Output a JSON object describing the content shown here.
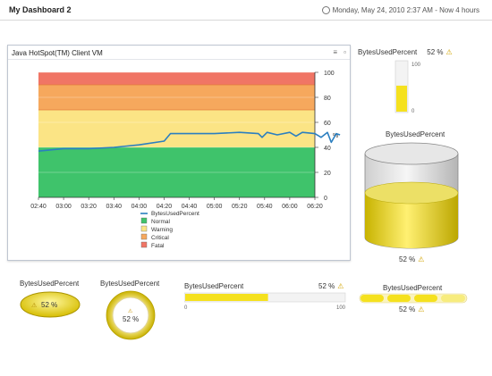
{
  "header": {
    "title": "My Dashboard 2",
    "time_range": "Monday, May 24, 2010 2:37 AM - Now 4 hours"
  },
  "colors": {
    "fatal": "#f07565",
    "critical": "#f6a85d",
    "warning": "#fbe485",
    "normal": "#3fc36b",
    "series": "#2b7fc0",
    "gauge_fill": "#f5e11e"
  },
  "line_panel": {
    "title": "Java HotSpot(TM) Client VM",
    "menu_icon": "menu-icon",
    "close_icon": "close-icon"
  },
  "chart_data": {
    "type": "line",
    "x": [
      "02:40",
      "03:00",
      "03:20",
      "03:40",
      "04:00",
      "04:20",
      "04:40",
      "05:00",
      "05:20",
      "05:40",
      "06:00",
      "06:20"
    ],
    "y_ticks": [
      0,
      20,
      40,
      60,
      80,
      100
    ],
    "ylim": [
      0,
      100
    ],
    "ylabel": "%",
    "bands": [
      {
        "name": "Normal",
        "from": 0,
        "to": 40
      },
      {
        "name": "Warning",
        "from": 40,
        "to": 70
      },
      {
        "name": "Critical",
        "from": 70,
        "to": 90
      },
      {
        "name": "Fatal",
        "from": 90,
        "to": 100
      }
    ],
    "series": [
      {
        "name": "BytesUsedPercent",
        "points": [
          [
            0,
            37
          ],
          [
            10,
            38
          ],
          [
            20,
            39
          ],
          [
            40,
            39
          ],
          [
            60,
            40
          ],
          [
            80,
            42
          ],
          [
            100,
            45
          ],
          [
            105,
            51
          ],
          [
            120,
            51
          ],
          [
            140,
            51
          ],
          [
            160,
            52
          ],
          [
            175,
            51
          ],
          [
            178,
            48
          ],
          [
            182,
            52
          ],
          [
            190,
            50
          ],
          [
            200,
            52
          ],
          [
            205,
            49
          ],
          [
            210,
            52
          ],
          [
            220,
            51
          ],
          [
            225,
            48
          ],
          [
            230,
            52
          ],
          [
            233,
            44
          ],
          [
            237,
            51
          ],
          [
            240,
            50
          ]
        ]
      }
    ],
    "legend": [
      "BytesUsedPercent",
      "Normal",
      "Warning",
      "Critical",
      "Fatal"
    ]
  },
  "thin_bar": {
    "title": "BytesUsedPercent",
    "value_text": "52 %",
    "max_label": "100",
    "min_label": "0",
    "value": 52
  },
  "cylinder": {
    "title": "BytesUsedPercent",
    "value_text": "52 %",
    "value": 52
  },
  "ellipse_gauge": {
    "title": "BytesUsedPercent",
    "value_text": "52 %"
  },
  "round_gauge": {
    "title": "BytesUsedPercent",
    "value_text": "52 %"
  },
  "horiz_bar": {
    "title": "BytesUsedPercent",
    "value_text": "52 %",
    "min_label": "0",
    "max_label": "100",
    "value": 52
  },
  "segment_bar": {
    "title": "BytesUsedPercent",
    "value_text": "52 %"
  }
}
